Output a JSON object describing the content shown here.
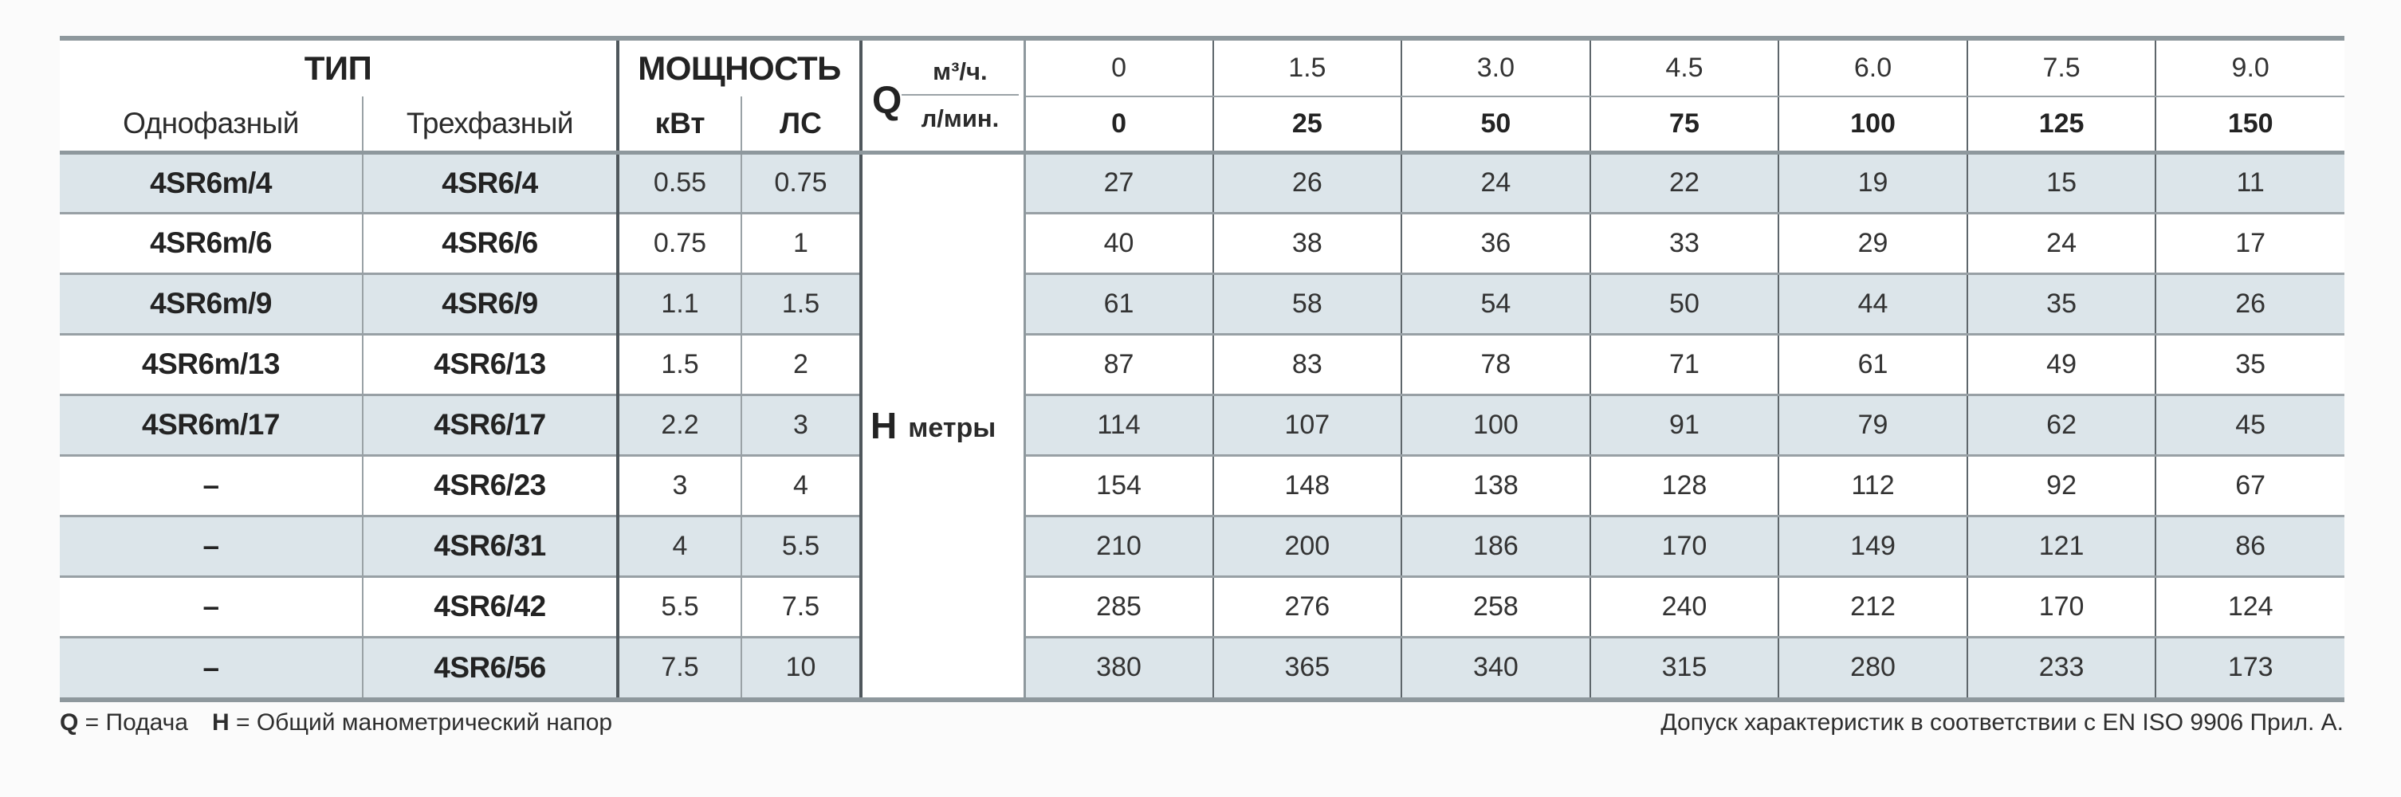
{
  "table": {
    "type_header": "ТИП",
    "power_header": "МОЩНОСТЬ",
    "col_single": "Однофазный",
    "col_three": "Трехфазный",
    "col_kw": "кВт",
    "col_hp": "ЛС",
    "q_label": "Q",
    "q_unit_top": "м³/ч.",
    "q_unit_bottom": "л/мин.",
    "h_label": "H",
    "h_unit": "метры",
    "flow_m3h": [
      "0",
      "1.5",
      "3.0",
      "4.5",
      "6.0",
      "7.5",
      "9.0"
    ],
    "flow_lmin": [
      "0",
      "25",
      "50",
      "75",
      "100",
      "125",
      "150"
    ],
    "rows": [
      {
        "single": "4SR6m/4",
        "three": "4SR6/4",
        "kw": "0.55",
        "hp": "0.75",
        "head": [
          "27",
          "26",
          "24",
          "22",
          "19",
          "15",
          "11"
        ]
      },
      {
        "single": "4SR6m/6",
        "three": "4SR6/6",
        "kw": "0.75",
        "hp": "1",
        "head": [
          "40",
          "38",
          "36",
          "33",
          "29",
          "24",
          "17"
        ]
      },
      {
        "single": "4SR6m/9",
        "three": "4SR6/9",
        "kw": "1.1",
        "hp": "1.5",
        "head": [
          "61",
          "58",
          "54",
          "50",
          "44",
          "35",
          "26"
        ]
      },
      {
        "single": "4SR6m/13",
        "three": "4SR6/13",
        "kw": "1.5",
        "hp": "2",
        "head": [
          "87",
          "83",
          "78",
          "71",
          "61",
          "49",
          "35"
        ]
      },
      {
        "single": "4SR6m/17",
        "three": "4SR6/17",
        "kw": "2.2",
        "hp": "3",
        "head": [
          "114",
          "107",
          "100",
          "91",
          "79",
          "62",
          "45"
        ]
      },
      {
        "single": "–",
        "three": "4SR6/23",
        "kw": "3",
        "hp": "4",
        "head": [
          "154",
          "148",
          "138",
          "128",
          "112",
          "92",
          "67"
        ]
      },
      {
        "single": "–",
        "three": "4SR6/31",
        "kw": "4",
        "hp": "5.5",
        "head": [
          "210",
          "200",
          "186",
          "170",
          "149",
          "121",
          "86"
        ]
      },
      {
        "single": "–",
        "three": "4SR6/42",
        "kw": "5.5",
        "hp": "7.5",
        "head": [
          "285",
          "276",
          "258",
          "240",
          "212",
          "170",
          "124"
        ]
      },
      {
        "single": "–",
        "three": "4SR6/56",
        "kw": "7.5",
        "hp": "10",
        "head": [
          "380",
          "365",
          "340",
          "315",
          "280",
          "233",
          "173"
        ]
      }
    ]
  },
  "footer": {
    "q_bold": "Q",
    "q_rest": " = Подача",
    "h_bold": "H",
    "h_rest": " = Общий манометрический напор",
    "right": "Допуск характеристик в соответствии с EN ISO 9906 Прил. А."
  },
  "colors": {
    "row_shade": "#dce5ea",
    "grid_gray": "#8e989d",
    "grid_dark": "#4f575c"
  }
}
